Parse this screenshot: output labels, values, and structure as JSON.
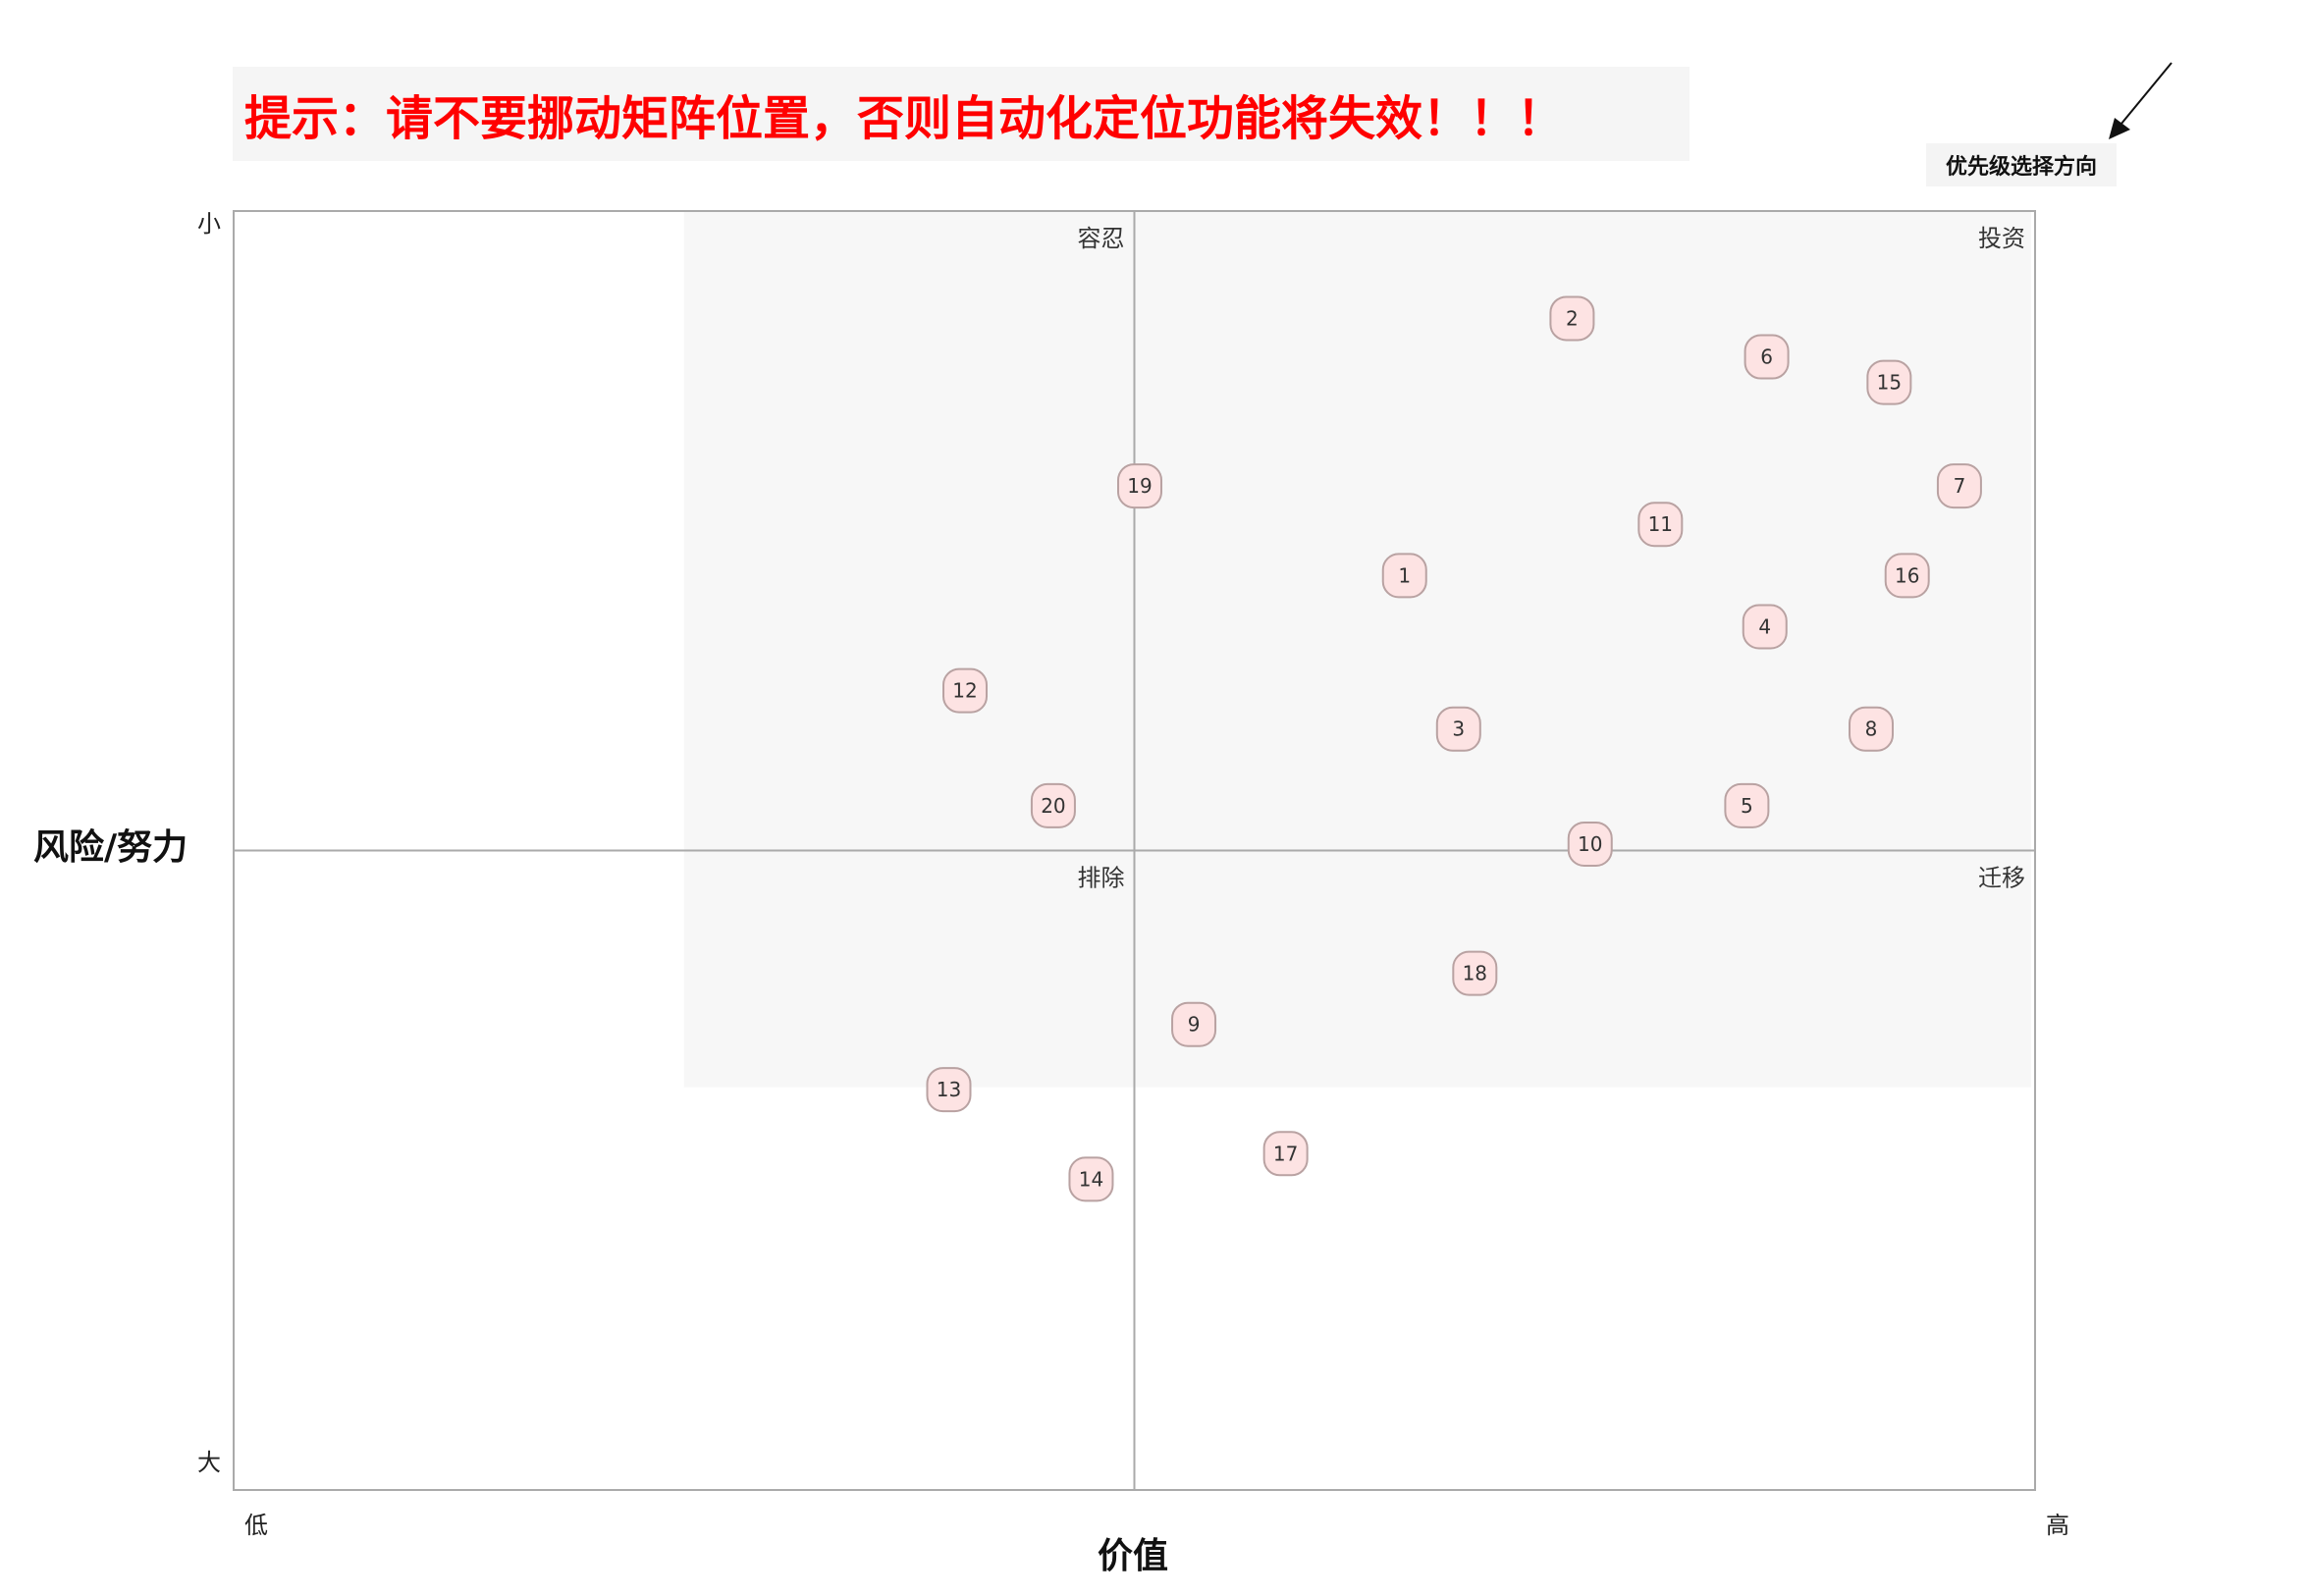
{
  "banner": {
    "text": "提示：请不要挪动矩阵位置，否则自动化定位功能将失效！！！"
  },
  "direction": {
    "label": "优先级选择方向"
  },
  "colors": {
    "banner_text": "#ff0000",
    "point_fill": "#fde3e3",
    "point_stroke": "#b9a2a2",
    "shaded": "#f7f7f7"
  },
  "chart_data": {
    "type": "scatter",
    "xlabel": "价值",
    "ylabel": "风险/努力",
    "x_ticks": {
      "min": "低",
      "max": "高"
    },
    "y_ticks": {
      "top": "小",
      "bottom": "大"
    },
    "xlim": [
      0,
      100
    ],
    "ylim": [
      0,
      100
    ],
    "y_direction": "top-is-low",
    "quadrants": [
      {
        "name": "容忍",
        "position": "top-left"
      },
      {
        "name": "投资",
        "position": "top-right"
      },
      {
        "name": "排除",
        "position": "bottom-left"
      },
      {
        "name": "迁移",
        "position": "bottom-right"
      }
    ],
    "points": [
      {
        "label": "1",
        "x": 65.0,
        "y": 28.5
      },
      {
        "label": "2",
        "x": 74.3,
        "y": 8.4
      },
      {
        "label": "3",
        "x": 68.0,
        "y": 40.5
      },
      {
        "label": "4",
        "x": 85.0,
        "y": 32.5
      },
      {
        "label": "5",
        "x": 84.0,
        "y": 46.5
      },
      {
        "label": "6",
        "x": 85.1,
        "y": 11.4
      },
      {
        "label": "7",
        "x": 95.8,
        "y": 21.5
      },
      {
        "label": "8",
        "x": 90.9,
        "y": 40.5
      },
      {
        "label": "9",
        "x": 53.3,
        "y": 63.6
      },
      {
        "label": "10",
        "x": 75.3,
        "y": 49.5
      },
      {
        "label": "11",
        "x": 79.2,
        "y": 24.5
      },
      {
        "label": "12",
        "x": 40.6,
        "y": 37.5
      },
      {
        "label": "13",
        "x": 39.7,
        "y": 68.7
      },
      {
        "label": "14",
        "x": 47.6,
        "y": 75.7
      },
      {
        "label": "15",
        "x": 91.9,
        "y": 13.4
      },
      {
        "label": "16",
        "x": 92.9,
        "y": 28.5
      },
      {
        "label": "17",
        "x": 58.4,
        "y": 73.7
      },
      {
        "label": "18",
        "x": 68.9,
        "y": 59.6
      },
      {
        "label": "19",
        "x": 50.3,
        "y": 21.5
      },
      {
        "label": "20",
        "x": 45.5,
        "y": 46.5
      }
    ]
  }
}
